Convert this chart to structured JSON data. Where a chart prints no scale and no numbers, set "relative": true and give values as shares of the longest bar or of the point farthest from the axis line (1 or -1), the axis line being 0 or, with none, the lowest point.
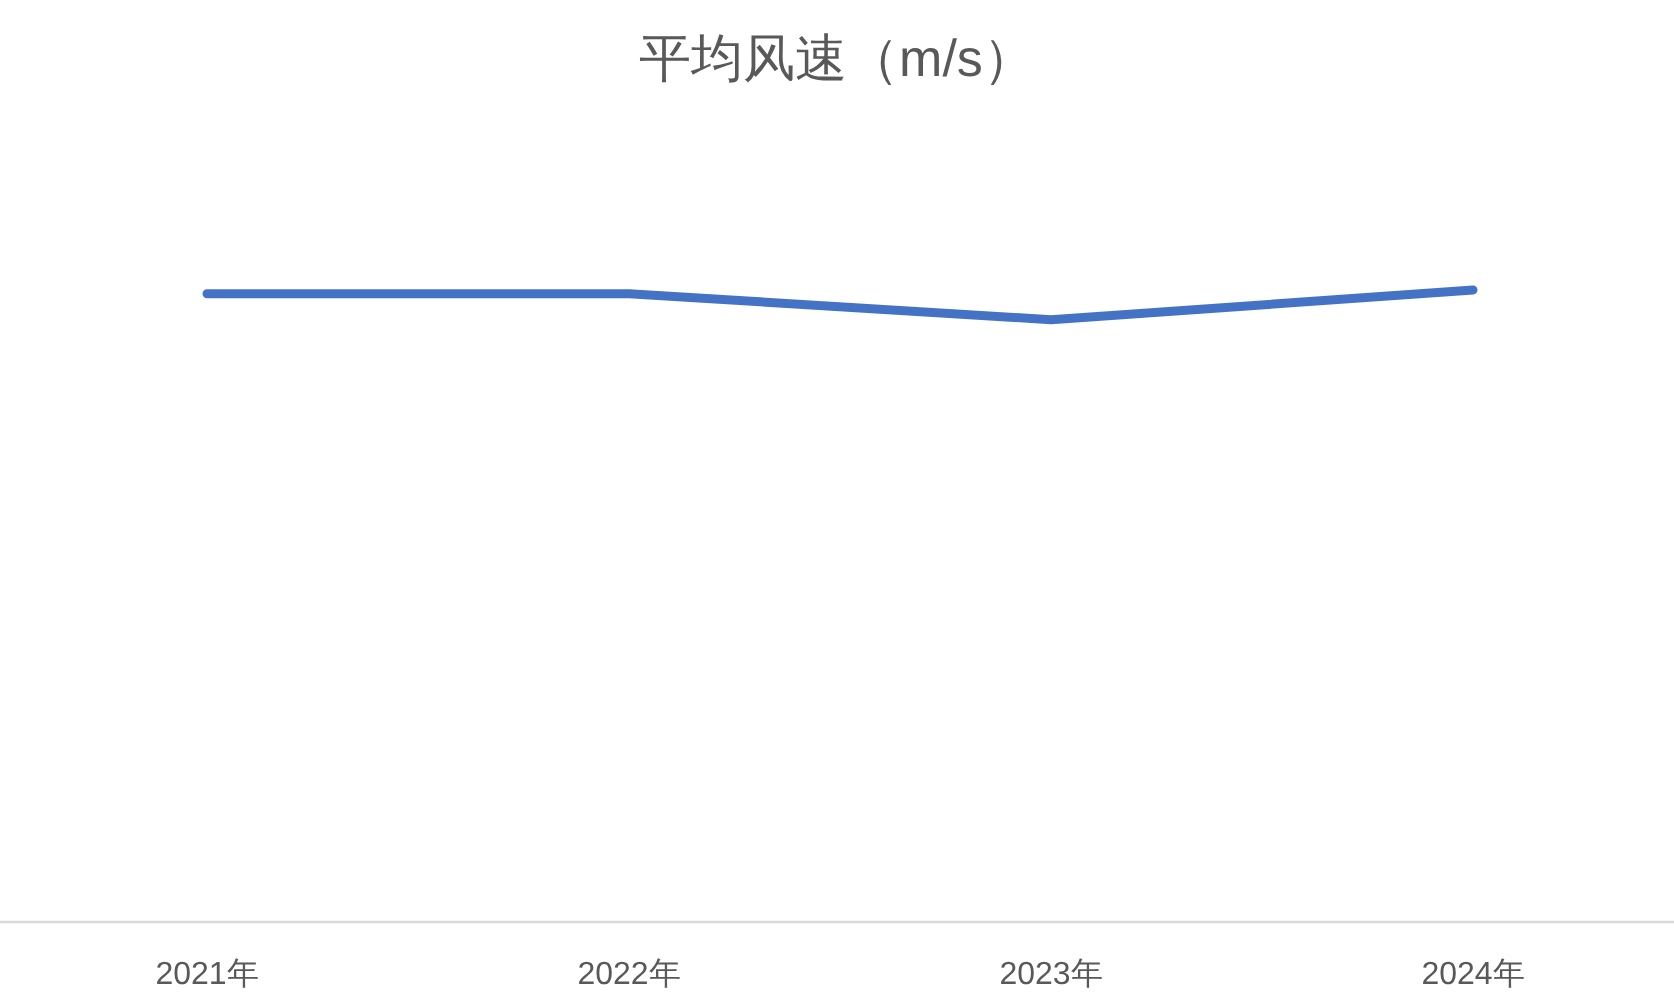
{
  "chart_data": {
    "type": "line",
    "title": "平均风速（m/s）",
    "relative": true,
    "categories": [
      "2021年",
      "2022年",
      "2023年",
      "2024年"
    ],
    "series": [
      {
        "color": "#4472c4",
        "values": [
          0.994,
          0.994,
          0.953,
          1
        ]
      }
    ]
  }
}
